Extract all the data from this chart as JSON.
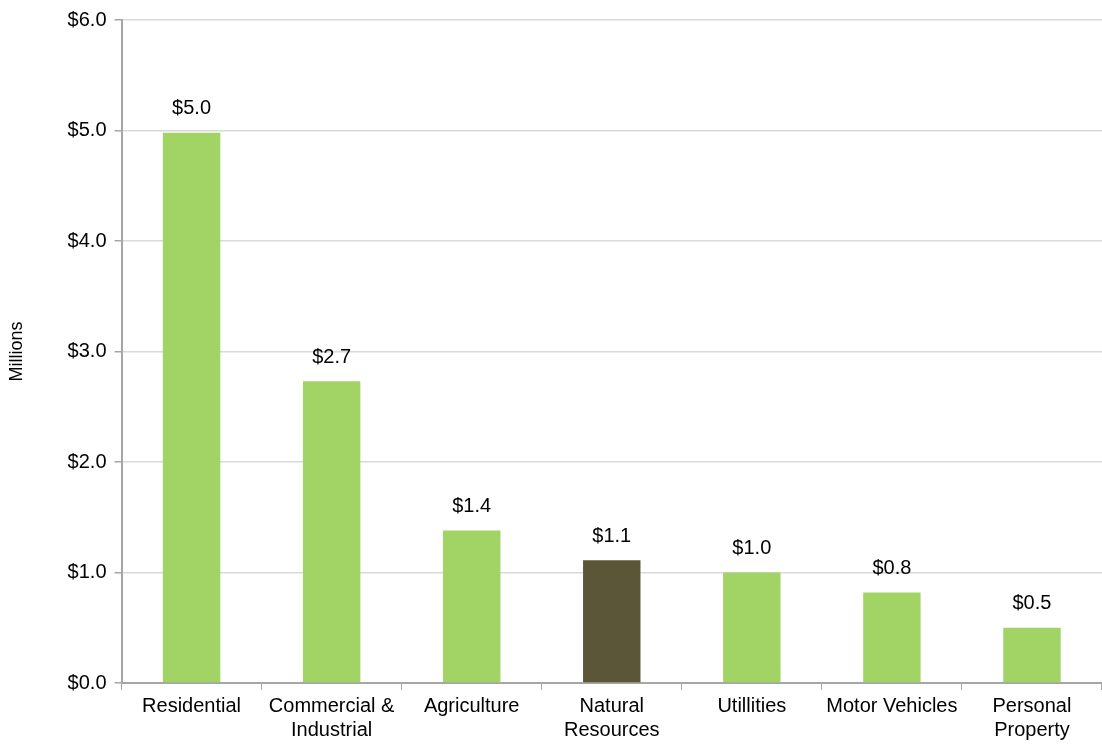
{
  "chart_data": {
    "type": "bar",
    "ylabel": "Millions",
    "categories": [
      "Residential",
      "Commercial & Industrial",
      "Agriculture",
      "Natural Resources",
      "Utillities",
      "Motor Vehicles",
      "Personal Property"
    ],
    "values": [
      4.98,
      2.73,
      1.38,
      1.11,
      1.0,
      0.82,
      0.5
    ],
    "value_labels": [
      "$5.0",
      "$2.7",
      "$1.4",
      "$1.1",
      "$1.0",
      "$0.8",
      "$0.5"
    ],
    "colors": [
      "#a1d465",
      "#a1d465",
      "#a1d465",
      "#5c5638",
      "#a1d465",
      "#a1d465",
      "#a1d465"
    ],
    "ylim": [
      0,
      6
    ],
    "yticks": [
      {
        "value": 0,
        "label": "$0.0"
      },
      {
        "value": 1,
        "label": "$1.0"
      },
      {
        "value": 2,
        "label": "$2.0"
      },
      {
        "value": 3,
        "label": "$3.0"
      },
      {
        "value": 4,
        "label": "$4.0"
      },
      {
        "value": 5,
        "label": "$5.0"
      },
      {
        "value": 6,
        "label": "$6.0"
      }
    ],
    "grid": "y"
  }
}
